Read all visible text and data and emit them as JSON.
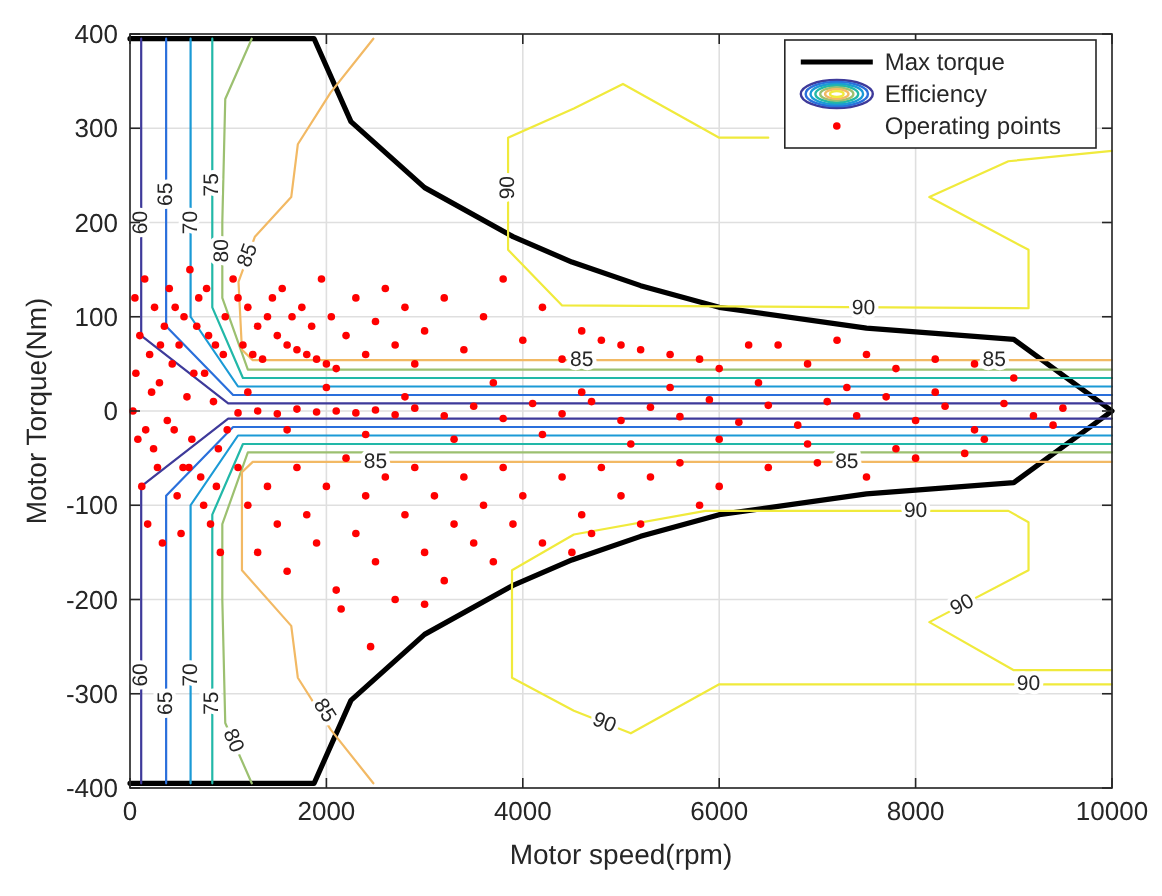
{
  "chart_data": {
    "type": "line",
    "xlabel": "Motor speed(rpm)",
    "ylabel": "Motor Torque(Nm)",
    "xlim": [
      0,
      10000
    ],
    "ylim": [
      -400,
      400
    ],
    "xticks": [
      0,
      2000,
      4000,
      6000,
      8000,
      10000
    ],
    "yticks": [
      -400,
      -300,
      -200,
      -100,
      0,
      100,
      200,
      300,
      400
    ],
    "grid": true,
    "legend": "top right",
    "series": [
      {
        "name": "Max torque",
        "color": "#000000",
        "x": [
          0,
          1875,
          2250,
          3000,
          3900,
          4500,
          5200,
          6000,
          7500,
          9000,
          10000,
          9000,
          7500,
          6000,
          5200,
          4500,
          3900,
          3000,
          2250,
          1875,
          0
        ],
        "values": [
          395,
          395,
          307,
          237,
          185,
          158,
          133,
          110,
          88,
          76,
          0,
          -76,
          -88,
          -110,
          -133,
          -158,
          -185,
          -237,
          -307,
          -395,
          -395
        ]
      },
      {
        "name": "Efficiency",
        "color": "#3e3a9a",
        "x": [
          114,
          114,
          1000,
          10000
        ],
        "values": [
          395,
          80,
          8,
          8
        ]
      },
      {
        "color": "#3e3a9a",
        "x": [
          10000,
          1000,
          114,
          114
        ],
        "values": [
          -8,
          -8,
          -80,
          -395
        ]
      },
      {
        "color": "#2a6fdb",
        "x": [
          368,
          368,
          1050,
          10000
        ],
        "values": [
          395,
          90,
          17,
          17
        ]
      },
      {
        "color": "#2a6fdb",
        "x": [
          10000,
          1050,
          368,
          368
        ],
        "values": [
          -17,
          -17,
          -90,
          -395
        ]
      },
      {
        "color": "#1b9ad6",
        "x": [
          617,
          617,
          1100,
          10000
        ],
        "values": [
          395,
          100,
          26,
          26
        ]
      },
      {
        "color": "#1b9ad6",
        "x": [
          10000,
          1100,
          617,
          617
        ],
        "values": [
          -26,
          -26,
          -100,
          -395
        ]
      },
      {
        "color": "#22b8a8",
        "x": [
          838,
          838,
          1150,
          10000
        ],
        "values": [
          395,
          110,
          35,
          35
        ]
      },
      {
        "color": "#22b8a8",
        "x": [
          10000,
          1150,
          838,
          838
        ],
        "values": [
          -35,
          -35,
          -110,
          -395
        ]
      },
      {
        "color": "#9cc070",
        "x": [
          1240,
          970,
          940,
          940,
          1200,
          10000
        ],
        "values": [
          395,
          331,
          200,
          120,
          44,
          44
        ]
      },
      {
        "color": "#9cc070",
        "x": [
          10000,
          1200,
          940,
          940,
          970,
          1240
        ],
        "values": [
          -44,
          -44,
          -120,
          -200,
          -331,
          -395
        ]
      },
      {
        "color": "#f2b964",
        "x": [
          2478,
          2044,
          1709,
          1642,
          1272,
          1105,
          1140,
          1250,
          10000
        ],
        "values": [
          395,
          338,
          283,
          227,
          185,
          137,
          65,
          54,
          54
        ]
      },
      {
        "color": "#f2b964",
        "x": [
          10000,
          1250,
          1140,
          1140,
          1642,
          1709,
          2044,
          2478
        ],
        "values": [
          -54,
          -54,
          -65,
          -169,
          -228,
          -283,
          -338,
          -395
        ]
      },
      {
        "color": "#f0ea3c",
        "x": [
          6500,
          6000,
          5020,
          4520,
          3850,
          3850,
          4400,
          9150,
          9150,
          8140,
          8945,
          10000
        ],
        "values": [
          290,
          290,
          347,
          321,
          290,
          171,
          112,
          109,
          171,
          227,
          265,
          276
        ]
      },
      {
        "color": "#f0ea3c",
        "x": [
          10000,
          9000,
          8140,
          9150,
          9150,
          8945,
          5860,
          4520,
          3890,
          3890,
          4520,
          5100,
          6000,
          10000
        ],
        "values": [
          -275,
          -275,
          -224,
          -169,
          -118,
          -106,
          -106,
          -131,
          -169,
          -283,
          -318,
          -342,
          -290,
          -290
        ]
      },
      {
        "name": "Operating points",
        "type": "scatter",
        "color": "#ff0000",
        "marker": "circle",
        "x": [
          50,
          100,
          150,
          200,
          250,
          300,
          350,
          400,
          450,
          500,
          550,
          600,
          650,
          700,
          750,
          800,
          850,
          900,
          950,
          80,
          120,
          180,
          220,
          280,
          330,
          380,
          430,
          480,
          520,
          580,
          630,
          680,
          720,
          780,
          820,
          870,
          920,
          970,
          30,
          60,
          160,
          240,
          310,
          460,
          540,
          610,
          760,
          880,
          990,
          1050,
          1100,
          1200,
          1300,
          1400,
          1500,
          1600,
          1700,
          1800,
          1900,
          2000,
          2100,
          1150,
          1250,
          1350,
          1450,
          1550,
          1650,
          1750,
          1850,
          1950,
          2050,
          2200,
          2300,
          2400,
          2500,
          2600,
          2700,
          2800,
          2900,
          3000,
          3200,
          3400,
          3600,
          3800,
          4000,
          4200,
          4400,
          4600,
          4800,
          5000,
          5200,
          5500,
          5800,
          6000,
          6300,
          6600,
          6900,
          7200,
          7500,
          7800,
          8200,
          8600,
          9000,
          1100,
          1300,
          1500,
          1700,
          1900,
          2100,
          2300,
          2500,
          2700,
          2900,
          3200,
          3500,
          3800,
          4100,
          4400,
          4700,
          5000,
          5300,
          5600,
          5900,
          6200,
          6500,
          6800,
          7100,
          7400,
          7700,
          8000,
          8300,
          8600,
          8900,
          9200,
          9500,
          1200,
          1600,
          2000,
          2400,
          2800,
          3300,
          3700,
          4200,
          4600,
          5100,
          5500,
          6000,
          6400,
          6900,
          7300,
          7800,
          8200,
          8700,
          9400,
          1100,
          1200,
          1300,
          1400,
          1500,
          1600,
          1700,
          1800,
          1900,
          2000,
          2100,
          2200,
          2300,
          2400,
          2500,
          2600,
          2700,
          2800,
          2900,
          3000,
          3100,
          3200,
          3300,
          3400,
          3500,
          3600,
          3700,
          3800,
          3900,
          4000,
          4200,
          4400,
          4600,
          4800,
          5000,
          5300,
          5600,
          6000,
          6500,
          7000,
          7500,
          8000,
          8500,
          2450,
          2150,
          3000,
          4500,
          4700,
          5200,
          5800
        ],
        "values": [
          120,
          80,
          140,
          60,
          110,
          30,
          90,
          130,
          -20,
          70,
          100,
          -60,
          40,
          120,
          -100,
          80,
          10,
          -40,
          60,
          -30,
          -80,
          -120,
          20,
          -60,
          -140,
          -10,
          50,
          -90,
          -130,
          15,
          -30,
          90,
          -70,
          130,
          -120,
          70,
          -150,
          100,
          0,
          40,
          -20,
          -40,
          70,
          110,
          -60,
          150,
          40,
          -80,
          -20,
          140,
          120,
          110,
          90,
          100,
          80,
          70,
          65,
          60,
          55,
          50,
          45,
          70,
          60,
          55,
          120,
          130,
          100,
          110,
          90,
          140,
          100,
          80,
          120,
          60,
          95,
          130,
          70,
          110,
          50,
          85,
          120,
          65,
          100,
          140,
          75,
          110,
          55,
          85,
          75,
          70,
          65,
          60,
          55,
          45,
          70,
          70,
          50,
          75,
          60,
          45,
          55,
          50,
          35,
          -2,
          0,
          -3,
          2,
          -1,
          0,
          -2,
          1,
          -4,
          3,
          -5,
          5,
          -8,
          8,
          -3,
          10,
          -10,
          4,
          -6,
          12,
          -12,
          6,
          -15,
          10,
          -5,
          15,
          -10,
          5,
          -20,
          8,
          -5,
          3,
          20,
          -20,
          25,
          -25,
          15,
          -30,
          30,
          -25,
          20,
          -35,
          25,
          -30,
          30,
          -35,
          25,
          -40,
          20,
          -30,
          -15,
          -60,
          -100,
          -150,
          -80,
          -120,
          -170,
          -60,
          -110,
          -140,
          -80,
          -190,
          -50,
          -130,
          -90,
          -160,
          -70,
          -200,
          -110,
          -60,
          -150,
          -90,
          -180,
          -120,
          -70,
          -140,
          -100,
          -160,
          -60,
          -120,
          -90,
          -140,
          -70,
          -110,
          -60,
          -90,
          -70,
          -55,
          -80,
          -60,
          -55,
          -70,
          -50,
          -45,
          -250,
          -210,
          -205,
          -150,
          -130,
          -120,
          -100
        ]
      }
    ],
    "annotations": [
      {
        "text": "85",
        "x": 1200,
        "y": 165
      },
      {
        "text": "85",
        "x": 1980,
        "y": -318
      },
      {
        "text": "85",
        "x": 2500,
        "y": -54
      },
      {
        "text": "85",
        "x": 7300,
        "y": -54
      },
      {
        "text": "85",
        "x": 4600,
        "y": 54
      },
      {
        "text": "85",
        "x": 8800,
        "y": 54
      },
      {
        "text": "90",
        "x": 3850,
        "y": 237
      },
      {
        "text": "90",
        "x": 7470,
        "y": 109
      },
      {
        "text": "90",
        "x": 8000,
        "y": -106
      },
      {
        "text": "90",
        "x": 8475,
        "y": -206
      },
      {
        "text": "90",
        "x": 9150,
        "y": -290
      },
      {
        "text": "90",
        "x": 4830,
        "y": -331
      },
      {
        "text": "60",
        "x": 114,
        "y": -280
      },
      {
        "text": "65",
        "x": 368,
        "y": -310
      },
      {
        "text": "70",
        "x": 617,
        "y": -280
      },
      {
        "text": "75",
        "x": 838,
        "y": -310
      },
      {
        "text": "80",
        "x": 1050,
        "y": -350
      },
      {
        "text": "60",
        "x": 114,
        "y": 200
      },
      {
        "text": "65",
        "x": 368,
        "y": 230
      },
      {
        "text": "70",
        "x": 617,
        "y": 200
      },
      {
        "text": "75",
        "x": 838,
        "y": 240
      },
      {
        "text": "80",
        "x": 940,
        "y": 170
      }
    ]
  }
}
